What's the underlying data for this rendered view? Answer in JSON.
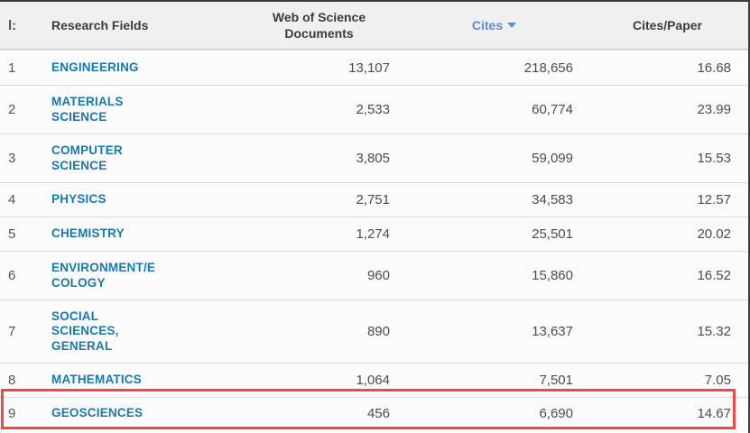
{
  "window": {
    "corner_label": "l:"
  },
  "table": {
    "columns": {
      "field": "Research Fields",
      "docs": "Web of Science\nDocuments",
      "cites": "Cites",
      "cites_per_paper": "Cites/Paper"
    },
    "sort": {
      "column": "Cites",
      "direction": "descending"
    },
    "rows": [
      {
        "rank": "1",
        "field": "ENGINEERING",
        "docs": "13,107",
        "cites": "218,656",
        "cites_per_paper": "16.68",
        "highlighted": false
      },
      {
        "rank": "2",
        "field": "MATERIALS\nSCIENCE",
        "docs": "2,533",
        "cites": "60,774",
        "cites_per_paper": "23.99",
        "highlighted": false
      },
      {
        "rank": "3",
        "field": "COMPUTER\nSCIENCE",
        "docs": "3,805",
        "cites": "59,099",
        "cites_per_paper": "15.53",
        "highlighted": false
      },
      {
        "rank": "4",
        "field": "PHYSICS",
        "docs": "2,751",
        "cites": "34,583",
        "cites_per_paper": "12.57",
        "highlighted": false
      },
      {
        "rank": "5",
        "field": "CHEMISTRY",
        "docs": "1,274",
        "cites": "25,501",
        "cites_per_paper": "20.02",
        "highlighted": false
      },
      {
        "rank": "6",
        "field": "ENVIRONMENT/E\nCOLOGY",
        "docs": "960",
        "cites": "15,860",
        "cites_per_paper": "16.52",
        "highlighted": false
      },
      {
        "rank": "7",
        "field": "SOCIAL\nSCIENCES,\nGENERAL",
        "docs": "890",
        "cites": "13,637",
        "cites_per_paper": "15.32",
        "highlighted": false
      },
      {
        "rank": "8",
        "field": "MATHEMATICS",
        "docs": "1,064",
        "cites": "7,501",
        "cites_per_paper": "7.05",
        "highlighted": false
      },
      {
        "rank": "9",
        "field": "GEOSCIENCES",
        "docs": "456",
        "cites": "6,690",
        "cites_per_paper": "14.67",
        "highlighted": true
      }
    ],
    "highlight_color": "#ee4a45"
  },
  "colors": {
    "field_link": "#1a79ab",
    "cites_sorted_header": "#5b8fd0",
    "header_bg": "#f0f0f0",
    "row_bg": "#fbfbfb",
    "value_text": "#4d4d4d",
    "window_border": "#3c3c3c"
  }
}
